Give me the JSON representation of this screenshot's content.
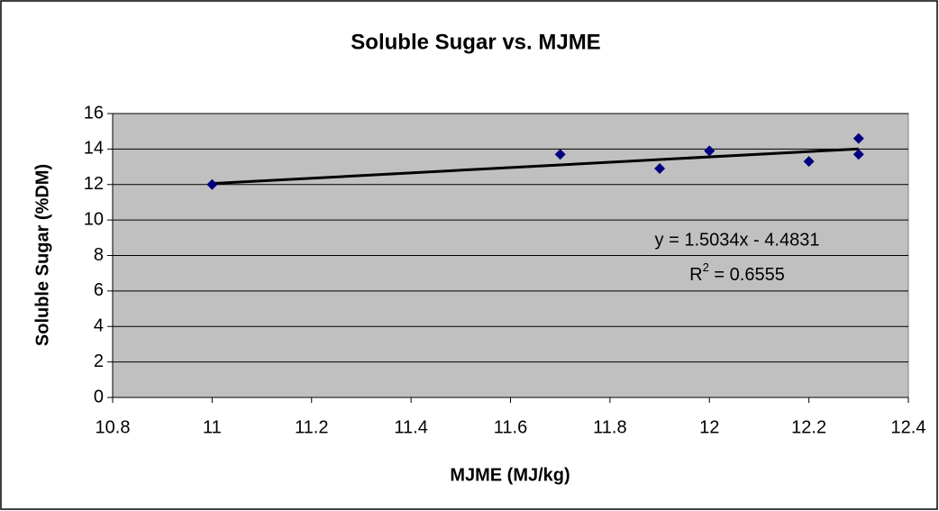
{
  "chart_data": {
    "type": "scatter",
    "title": "Soluble Sugar vs. MJME",
    "x_label": "MJME (MJ/kg)",
    "y_label": "Soluble Sugar (%DM)",
    "x": [
      11,
      11.7,
      11.9,
      12,
      12.2,
      12.3,
      12.3
    ],
    "values": [
      12,
      13.7,
      12.9,
      13.9,
      13.3,
      14.6,
      13.7
    ],
    "color": "#000080",
    "xlim": [
      10.8,
      12.4
    ],
    "xticks": [
      10.8,
      11,
      11.2,
      11.4,
      11.6,
      11.8,
      12,
      12.2,
      12.4
    ],
    "ylim": [
      0,
      16
    ],
    "yticks": [
      0,
      2,
      4,
      6,
      8,
      10,
      12,
      14,
      16
    ],
    "grid": true,
    "trendline": {
      "slope": 1.5034,
      "intercept": -4.4831,
      "color": "#000000",
      "equation": "y = 1.5034x - 4.4831",
      "r_squared_label": [
        "R",
        "2",
        " = 0.6555"
      ]
    }
  }
}
